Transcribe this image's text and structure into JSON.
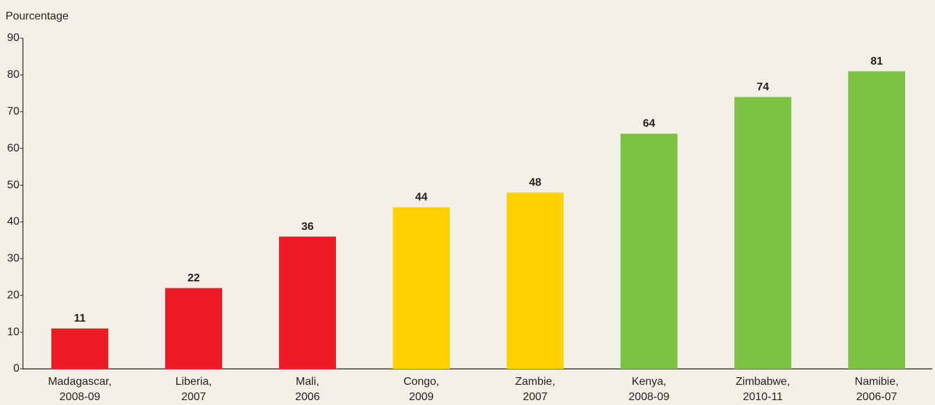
{
  "chart_data": {
    "type": "bar",
    "y_label": "Pourcentage",
    "categories": [
      [
        "Madagascar,",
        "2008-09"
      ],
      [
        "Liberia,",
        "2007"
      ],
      [
        "Mali,",
        "2006"
      ],
      [
        "Congo,",
        "2009"
      ],
      [
        "Zambie,",
        "2007"
      ],
      [
        "Kenya,",
        "2008-09"
      ],
      [
        "Zimbabwe,",
        "2010-11"
      ],
      [
        "Namibie,",
        "2006-07"
      ]
    ],
    "values": [
      11,
      22,
      36,
      44,
      48,
      64,
      74,
      81
    ],
    "colors": [
      "#ed1c24",
      "#ed1c24",
      "#ed1c24",
      "#ffd200",
      "#ffd200",
      "#7dc242",
      "#7dc242",
      "#7dc242"
    ],
    "ylim": [
      0,
      90
    ],
    "yticks": [
      0,
      10,
      20,
      30,
      40,
      50,
      60,
      70,
      80,
      90
    ],
    "grid": false
  }
}
